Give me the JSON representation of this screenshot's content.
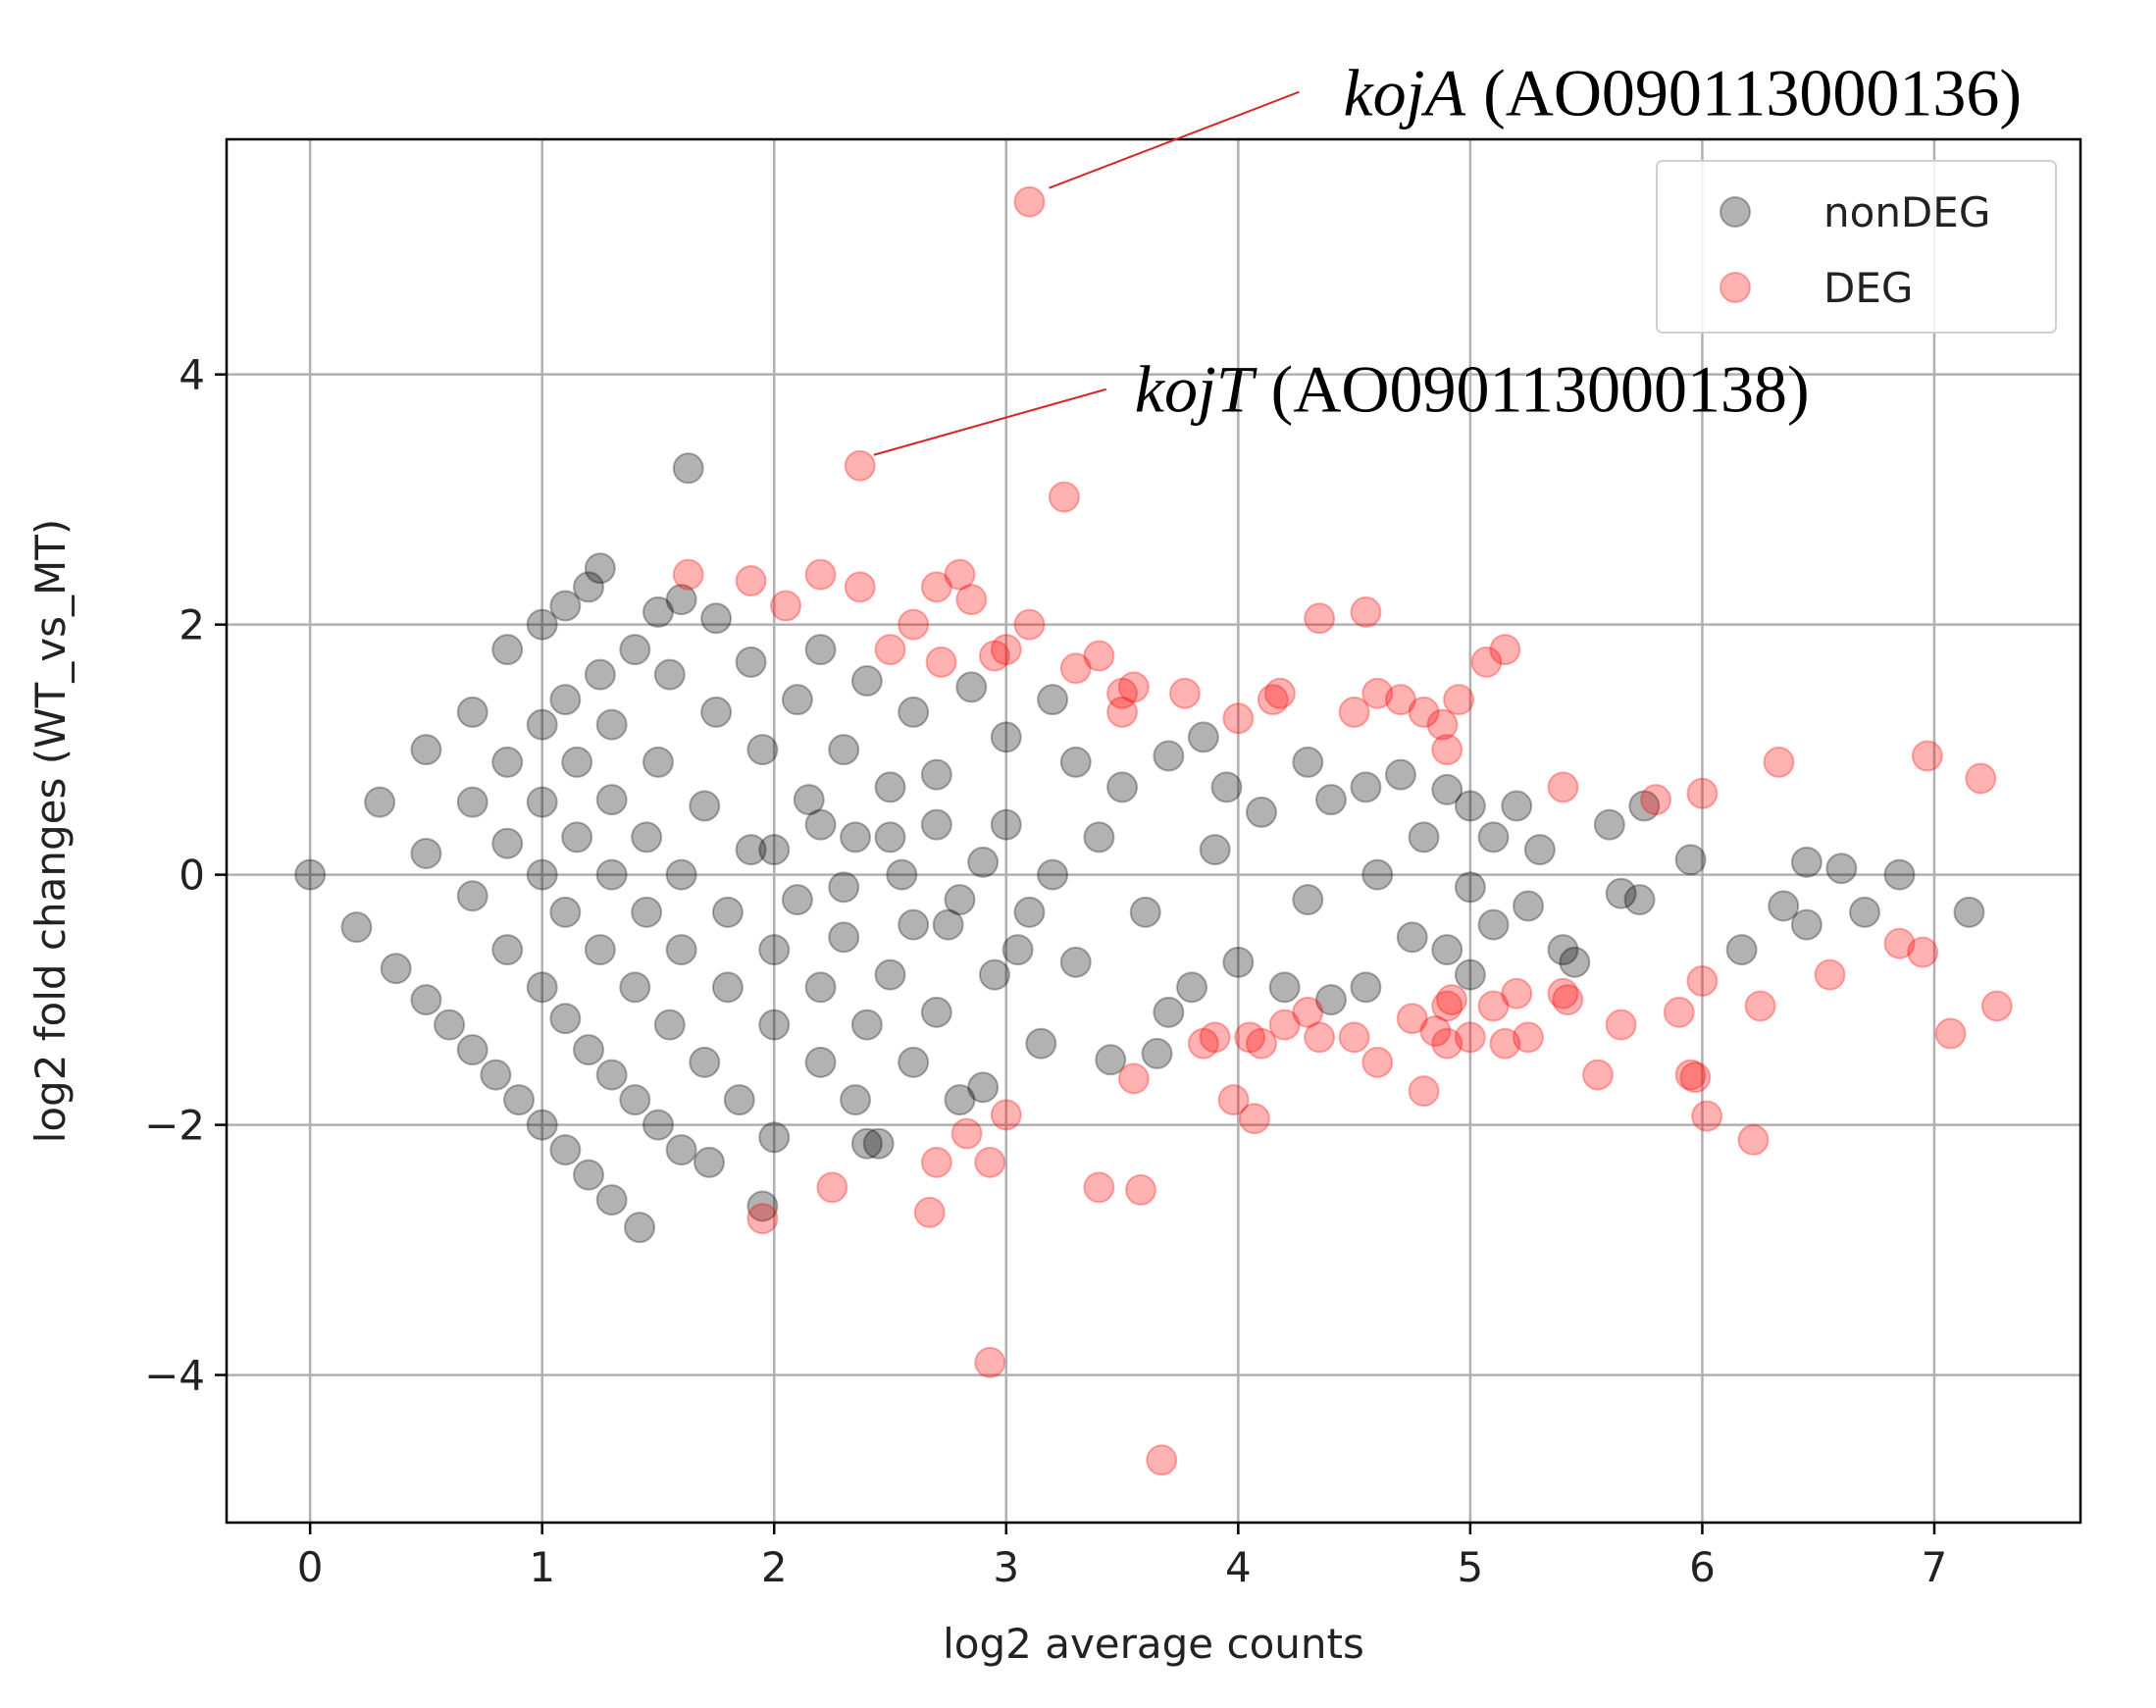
{
  "chart_data": {
    "type": "scatter",
    "xlabel": "log2 average counts",
    "ylabel": "log2 fold changes (WT_vs_MT)",
    "xlim": [
      -0.36,
      7.63
    ],
    "ylim": [
      -5.18,
      5.88
    ],
    "xticks": [
      0,
      1,
      2,
      3,
      4,
      5,
      6,
      7
    ],
    "yticks": [
      {
        "value": -4,
        "label": "−4"
      },
      {
        "value": -2,
        "label": "−2"
      },
      0,
      2,
      4
    ],
    "grid": true,
    "legend": "upper right",
    "alpha": 0.3,
    "annotations": [
      {
        "italic": "kojA",
        "text": "(AO090113000136)"
      },
      {
        "italic": "kojT",
        "text": "(AO090113000138)"
      }
    ],
    "series": [
      {
        "name": "nonDEG",
        "color": "#000000",
        "x": [
          0,
          0.3,
          0.5,
          0.7,
          0.85,
          1.0,
          1.1,
          1.2,
          1.25,
          0.2,
          0.37,
          0.5,
          0.6,
          0.7,
          0.8,
          0.9,
          1.0,
          1.1,
          1.2,
          1.3,
          1.42,
          0.5,
          0.7,
          0.85,
          1.0,
          1.1,
          1.2,
          1.3,
          1.4,
          1.5,
          1.6,
          1.72,
          0.7,
          0.85,
          1.0,
          1.1,
          1.25,
          1.4,
          1.55,
          1.7,
          1.85,
          2.0,
          0.85,
          1.0,
          1.15,
          1.3,
          1.45,
          1.6,
          1.8,
          2.0,
          2.2,
          2.35,
          2.45,
          1.0,
          1.15,
          1.3,
          1.45,
          1.6,
          1.8,
          2.0,
          2.2,
          2.4,
          2.6,
          2.8,
          1.1,
          1.3,
          1.5,
          1.7,
          1.9,
          2.1,
          2.3,
          2.5,
          2.7,
          1.25,
          1.4,
          1.55,
          1.75,
          1.95,
          2.15,
          2.35,
          2.55,
          2.75,
          2.95,
          1.5,
          1.6,
          1.75,
          1.9,
          2.1,
          2.3,
          2.5,
          2.7,
          2.9,
          3.1,
          3.3,
          2.2,
          2.4,
          2.6,
          2.85,
          3.0,
          3.2,
          3.3,
          3.5,
          3.7,
          3.85,
          3.95,
          4.1,
          4.3,
          4.4,
          4.55,
          4.7,
          4.9,
          5.0,
          5.1,
          5.2,
          5.3,
          5.6,
          5.75,
          5.95,
          6.45,
          6.6,
          6.85,
          7.15,
          6.7,
          6.45,
          6.35,
          6.17,
          5.73,
          5.65,
          5.4,
          5.45,
          5.25,
          5.1,
          5.0,
          4.9,
          4.75,
          4.55,
          4.4,
          4.2,
          4.0,
          3.8,
          3.7,
          3.65,
          3.45,
          3.15,
          2.9,
          2.4,
          1.95,
          1.63,
          3.0,
          3.2,
          3.4,
          3.6,
          3.9,
          4.3,
          4.6,
          4.8,
          5.0,
          2.5,
          2.3,
          2.7,
          2.8,
          3.05,
          2.2,
          2.0,
          2.6
        ],
        "values": [
          0,
          0.58,
          1.0,
          1.3,
          1.8,
          2.0,
          2.15,
          2.3,
          2.45,
          -0.42,
          -0.75,
          -1.0,
          -1.2,
          -1.4,
          -1.6,
          -1.8,
          -2.0,
          -2.2,
          -2.4,
          -2.6,
          -2.82,
          0.17,
          -0.17,
          -0.6,
          -0.9,
          -1.15,
          -1.4,
          -1.6,
          -1.8,
          -2.0,
          -2.2,
          -2.3,
          0.58,
          0.25,
          0.0,
          -0.3,
          -0.6,
          -0.9,
          -1.2,
          -1.5,
          -1.8,
          -2.1,
          0.9,
          0.58,
          0.3,
          0.0,
          -0.3,
          -0.6,
          -0.9,
          -1.2,
          -1.5,
          -1.8,
          -2.15,
          1.2,
          0.9,
          0.6,
          0.3,
          0.0,
          -0.3,
          -0.6,
          -0.9,
          -1.2,
          -1.5,
          -1.8,
          1.4,
          1.2,
          0.9,
          0.55,
          0.2,
          -0.2,
          -0.5,
          -0.8,
          -1.1,
          1.6,
          1.8,
          1.6,
          1.3,
          1.0,
          0.6,
          0.3,
          0.0,
          -0.4,
          -0.8,
          2.1,
          2.2,
          2.05,
          1.7,
          1.4,
          1.0,
          0.7,
          0.4,
          0.1,
          -0.3,
          -0.7,
          1.8,
          1.55,
          1.3,
          1.5,
          1.1,
          1.4,
          0.9,
          0.7,
          0.95,
          1.1,
          0.7,
          0.5,
          0.9,
          0.6,
          0.7,
          0.8,
          0.68,
          0.55,
          0.3,
          0.55,
          0.2,
          0.4,
          0.55,
          0.12,
          0.1,
          0.05,
          0.0,
          -0.3,
          -0.3,
          -0.4,
          -0.25,
          -0.6,
          -0.2,
          -0.15,
          -0.6,
          -0.7,
          -0.25,
          -0.4,
          -0.8,
          -0.6,
          -0.5,
          -0.9,
          -1.0,
          -0.9,
          -0.7,
          -0.9,
          -1.1,
          -1.43,
          -1.48,
          -1.35,
          -1.7,
          -2.15,
          -2.65,
          3.25,
          0.4,
          0.0,
          0.3,
          -0.3,
          0.2,
          -0.2,
          0.0,
          0.3,
          -0.1,
          0.3,
          -0.1,
          0.8,
          -0.2,
          -0.6,
          0.4,
          0.2,
          -0.4
        ]
      },
      {
        "name": "DEG",
        "color": "#ff0000",
        "x": [
          3.1,
          2.37,
          3.25,
          1.63,
          1.9,
          2.05,
          2.2,
          2.37,
          2.6,
          2.5,
          2.7,
          2.8,
          2.85,
          2.72,
          2.95,
          3.0,
          3.1,
          3.3,
          3.4,
          3.5,
          3.55,
          3.5,
          3.77,
          4.0,
          4.15,
          4.18,
          4.35,
          4.55,
          4.5,
          4.6,
          4.7,
          4.8,
          4.88,
          4.9,
          4.95,
          5.07,
          5.15,
          5.4,
          5.8,
          6.0,
          6.33,
          6.97,
          7.2,
          3.85,
          3.9,
          4.05,
          4.1,
          4.2,
          4.3,
          4.35,
          4.5,
          4.6,
          4.75,
          4.85,
          4.9,
          4.92,
          4.9,
          5.0,
          5.1,
          5.15,
          5.2,
          5.25,
          5.4,
          5.42,
          5.65,
          5.9,
          6.0,
          6.25,
          6.55,
          6.85,
          6.95,
          7.07,
          7.27,
          5.55,
          5.95,
          5.97,
          6.02,
          6.22,
          4.8,
          3.98,
          4.07,
          3.55,
          3.0,
          2.83,
          2.7,
          2.93,
          2.67,
          3.4,
          3.58,
          2.25,
          1.95,
          2.93,
          3.67
        ],
        "values": [
          5.38,
          3.27,
          3.02,
          2.4,
          2.35,
          2.15,
          2.4,
          2.3,
          2.0,
          1.8,
          2.3,
          2.4,
          2.2,
          1.7,
          1.75,
          1.8,
          2.0,
          1.65,
          1.75,
          1.3,
          1.5,
          1.45,
          1.45,
          1.25,
          1.4,
          1.45,
          2.05,
          2.1,
          1.3,
          1.45,
          1.4,
          1.3,
          1.2,
          1.0,
          1.4,
          1.7,
          1.8,
          0.7,
          0.6,
          0.65,
          0.9,
          0.95,
          0.77,
          -1.35,
          -1.3,
          -1.3,
          -1.35,
          -1.2,
          -1.1,
          -1.3,
          -1.3,
          -1.5,
          -1.15,
          -1.25,
          -1.05,
          -1.0,
          -1.35,
          -1.3,
          -1.05,
          -1.35,
          -0.95,
          -1.3,
          -0.95,
          -1.0,
          -1.2,
          -1.1,
          -0.85,
          -1.05,
          -0.8,
          -0.55,
          -0.62,
          -1.27,
          -1.05,
          -1.6,
          -1.6,
          -1.62,
          -1.93,
          -2.12,
          -1.73,
          -1.8,
          -1.95,
          -1.63,
          -1.92,
          -2.07,
          -2.3,
          -2.3,
          -2.7,
          -2.5,
          -2.52,
          -2.5,
          -2.75,
          -3.9,
          -4.68
        ]
      }
    ]
  }
}
